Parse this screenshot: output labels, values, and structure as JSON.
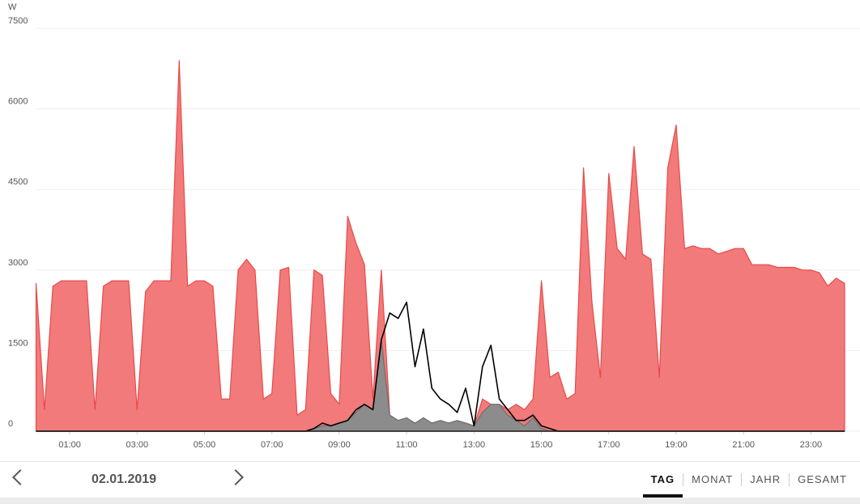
{
  "chart_data": {
    "type": "area",
    "y_label": "W",
    "x": [
      0,
      0.25,
      0.5,
      0.75,
      1,
      1.25,
      1.5,
      1.75,
      2,
      2.25,
      2.5,
      2.75,
      3,
      3.25,
      3.5,
      3.75,
      4,
      4.25,
      4.5,
      4.75,
      5,
      5.25,
      5.5,
      5.75,
      6,
      6.25,
      6.5,
      6.75,
      7,
      7.25,
      7.5,
      7.75,
      8,
      8.25,
      8.5,
      8.75,
      9,
      9.25,
      9.5,
      9.75,
      10,
      10.25,
      10.5,
      10.75,
      11,
      11.25,
      11.5,
      11.75,
      12,
      12.25,
      12.5,
      12.75,
      13,
      13.25,
      13.5,
      13.75,
      14,
      14.25,
      14.5,
      14.75,
      15,
      15.25,
      15.5,
      15.75,
      16,
      16.25,
      16.5,
      16.75,
      17,
      17.25,
      17.5,
      17.75,
      18,
      18.25,
      18.5,
      18.75,
      19,
      19.25,
      19.5,
      19.75,
      20,
      20.25,
      20.5,
      20.75,
      21,
      21.25,
      21.5,
      21.75,
      22,
      22.25,
      22.5,
      22.75,
      23,
      23.25,
      23.5,
      23.75,
      24
    ],
    "series": [
      {
        "color": "#f27a7a",
        "line_color": "#e84a4a",
        "fill": true,
        "values": [
          2750,
          400,
          2700,
          2800,
          2800,
          2800,
          2800,
          400,
          2700,
          2800,
          2800,
          2800,
          400,
          2600,
          2800,
          2800,
          2800,
          6900,
          2700,
          2800,
          2800,
          2700,
          600,
          600,
          3000,
          3200,
          3000,
          600,
          700,
          3000,
          3050,
          300,
          400,
          3000,
          2900,
          700,
          500,
          4000,
          3500,
          3100,
          600,
          3000,
          300,
          200,
          200,
          150,
          200,
          150,
          150,
          150,
          150,
          150,
          100,
          600,
          500,
          500,
          400,
          500,
          400,
          600,
          2800,
          1000,
          1100,
          600,
          700,
          4900,
          2400,
          1000,
          4800,
          3400,
          3200,
          5300,
          3300,
          3200,
          1000,
          4900,
          5700,
          3400,
          3450,
          3400,
          3400,
          3300,
          3350,
          3400,
          3400,
          3100,
          3100,
          3100,
          3050,
          3050,
          3050,
          3000,
          3000,
          2950,
          2700,
          2850,
          2750
        ]
      },
      {
        "color": "#8c8c8c",
        "line_color": "#6e6e6e",
        "fill": true,
        "values": [
          0,
          0,
          0,
          0,
          0,
          0,
          0,
          0,
          0,
          0,
          0,
          0,
          0,
          0,
          0,
          0,
          0,
          0,
          0,
          0,
          0,
          0,
          0,
          0,
          0,
          0,
          0,
          0,
          0,
          0,
          0,
          0,
          0,
          50,
          100,
          100,
          150,
          200,
          350,
          500,
          400,
          1700,
          300,
          200,
          250,
          150,
          250,
          150,
          200,
          150,
          200,
          150,
          100,
          350,
          500,
          500,
          300,
          200,
          100,
          250,
          50,
          0,
          0,
          0,
          0,
          0,
          0,
          0,
          0,
          0,
          0,
          0,
          0,
          0,
          0,
          0,
          0,
          0,
          0,
          0,
          0,
          0,
          0,
          0,
          0,
          0,
          0,
          0,
          0,
          0,
          0,
          0,
          0,
          0,
          0,
          0,
          0
        ]
      },
      {
        "color": "#000000",
        "line_color": "#000000",
        "fill": false,
        "values": [
          0,
          0,
          0,
          0,
          0,
          0,
          0,
          0,
          0,
          0,
          0,
          0,
          0,
          0,
          0,
          0,
          0,
          0,
          0,
          0,
          0,
          0,
          0,
          0,
          0,
          0,
          0,
          0,
          0,
          0,
          0,
          0,
          0,
          50,
          150,
          100,
          150,
          200,
          400,
          500,
          400,
          1700,
          2200,
          2100,
          2400,
          1200,
          1900,
          800,
          600,
          500,
          350,
          800,
          100,
          1200,
          1600,
          600,
          400,
          200,
          200,
          300,
          100,
          50,
          0,
          0,
          0,
          0,
          0,
          0,
          0,
          0,
          0,
          0,
          0,
          0,
          0,
          0,
          0,
          0,
          0,
          0,
          0,
          0,
          0,
          0,
          0,
          0,
          0,
          0,
          0,
          0,
          0,
          0,
          0,
          0,
          0,
          0,
          0
        ]
      }
    ],
    "xlim": [
      0,
      24
    ],
    "xticks": [
      {
        "value": 1,
        "label": "01:00"
      },
      {
        "value": 3,
        "label": "03:00"
      },
      {
        "value": 5,
        "label": "05:00"
      },
      {
        "value": 7,
        "label": "07:00"
      },
      {
        "value": 9,
        "label": "09:00"
      },
      {
        "value": 11,
        "label": "11:00"
      },
      {
        "value": 13,
        "label": "13:00"
      },
      {
        "value": 15,
        "label": "15:00"
      },
      {
        "value": 17,
        "label": "17:00"
      },
      {
        "value": 19,
        "label": "19:00"
      },
      {
        "value": 21,
        "label": "21:00"
      },
      {
        "value": 23,
        "label": "23:00"
      }
    ],
    "ylim": [
      0,
      7500
    ],
    "yticks": [
      0,
      1500,
      3000,
      4500,
      6000,
      7500
    ],
    "grid": true
  },
  "nav": {
    "date": "02.01.2019",
    "tabs": [
      "TAG",
      "MONAT",
      "JAHR",
      "GESAMT"
    ],
    "active": 0
  }
}
